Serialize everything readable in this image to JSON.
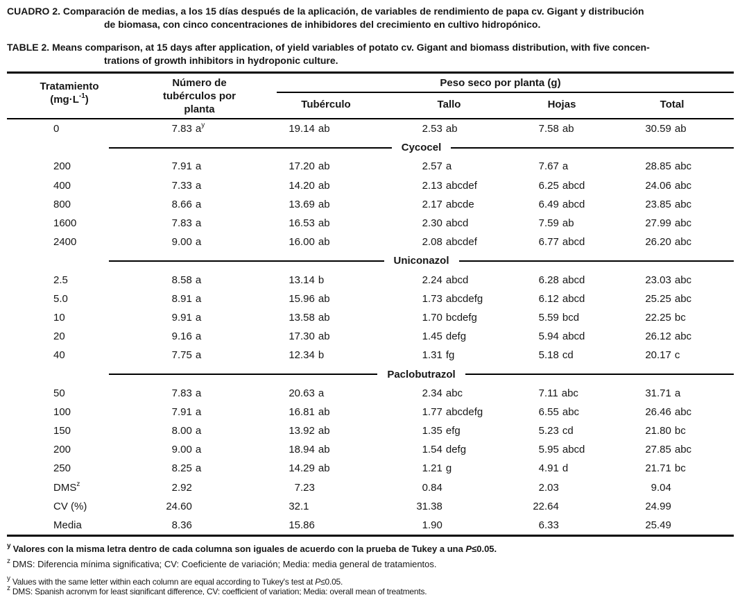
{
  "captions": {
    "spanish": {
      "line1": "CUADRO 2. Comparación de medias, a los 15 días después de la aplicación, de variables de rendimiento de papa cv. Gigant y distribución",
      "line2": "de biomasa, con cinco concentraciones de inhibidores del crecimiento en cultivo hidropónico."
    },
    "english": {
      "line1": "TABLE 2. Means comparison, at 15 days after application, of yield variables of potato cv. Gigant and biomass distribution, with five concen-",
      "line2": "trations of growth inhibitors in hydroponic culture."
    }
  },
  "table": {
    "headers": {
      "treatment_label": "Tratamiento",
      "treatment_unit": {
        "pre": "(mg·L",
        "sup": "-1",
        "post": ")"
      },
      "tubers_label_l1": "Número de",
      "tubers_label_l2": "tubérculos por",
      "tubers_label_l3": "planta",
      "dry_weight_label": "Peso seco por planta (g)",
      "sub_headers": [
        "Tubérculo",
        "Tallo",
        "Hojas",
        "Total"
      ]
    },
    "rows": [
      {
        "type": "data",
        "treatment": "0",
        "cells": [
          {
            "num": "7.83",
            "letters": "a",
            "sup": "y"
          },
          {
            "num": "19.14",
            "letters": "ab"
          },
          {
            "num": "2.53",
            "letters": "ab"
          },
          {
            "num": "7.58",
            "letters": "ab"
          },
          {
            "num": "30.59",
            "letters": "ab"
          }
        ]
      },
      {
        "type": "section",
        "label": "Cycocel"
      },
      {
        "type": "data",
        "treatment": "200",
        "cells": [
          {
            "num": "7.91",
            "letters": "a"
          },
          {
            "num": "17.20",
            "letters": "ab"
          },
          {
            "num": "2.57",
            "letters": "a"
          },
          {
            "num": "7.67",
            "letters": "a"
          },
          {
            "num": "28.85",
            "letters": "abc"
          }
        ]
      },
      {
        "type": "data",
        "treatment": "400",
        "cells": [
          {
            "num": "7.33",
            "letters": "a"
          },
          {
            "num": "14.20",
            "letters": "ab"
          },
          {
            "num": "2.13",
            "letters": "abcdef"
          },
          {
            "num": "6.25",
            "letters": "abcd"
          },
          {
            "num": "24.06",
            "letters": "abc"
          }
        ]
      },
      {
        "type": "data",
        "treatment": "800",
        "cells": [
          {
            "num": "8.66",
            "letters": "a"
          },
          {
            "num": "13.69",
            "letters": "ab"
          },
          {
            "num": "2.17",
            "letters": "abcde"
          },
          {
            "num": "6.49",
            "letters": "abcd"
          },
          {
            "num": "23.85",
            "letters": "abc"
          }
        ]
      },
      {
        "type": "data",
        "treatment": "1600",
        "cells": [
          {
            "num": "7.83",
            "letters": "a"
          },
          {
            "num": "16.53",
            "letters": "ab"
          },
          {
            "num": "2.30",
            "letters": "abcd"
          },
          {
            "num": "7.59",
            "letters": "ab"
          },
          {
            "num": "27.99",
            "letters": "abc"
          }
        ]
      },
      {
        "type": "data",
        "treatment": "2400",
        "cells": [
          {
            "num": "9.00",
            "letters": "a"
          },
          {
            "num": "16.00",
            "letters": "ab"
          },
          {
            "num": "2.08",
            "letters": "abcdef"
          },
          {
            "num": "6.77",
            "letters": "abcd"
          },
          {
            "num": "26.20",
            "letters": "abc"
          }
        ]
      },
      {
        "type": "section",
        "label": "Uniconazol"
      },
      {
        "type": "data",
        "treatment": "2.5",
        "cells": [
          {
            "num": "8.58",
            "letters": "a"
          },
          {
            "num": "13.14",
            "letters": "b"
          },
          {
            "num": "2.24",
            "letters": "abcd"
          },
          {
            "num": "6.28",
            "letters": "abcd"
          },
          {
            "num": "23.03",
            "letters": "abc"
          }
        ]
      },
      {
        "type": "data",
        "treatment": "5.0",
        "cells": [
          {
            "num": "8.91",
            "letters": "a"
          },
          {
            "num": "15.96",
            "letters": "ab"
          },
          {
            "num": "1.73",
            "letters": "abcdefg"
          },
          {
            "num": "6.12",
            "letters": "abcd"
          },
          {
            "num": "25.25",
            "letters": "abc"
          }
        ]
      },
      {
        "type": "data",
        "treatment": "10",
        "cells": [
          {
            "num": "9.91",
            "letters": "a"
          },
          {
            "num": "13.58",
            "letters": "ab"
          },
          {
            "num": "1.70",
            "letters": "bcdefg"
          },
          {
            "num": "5.59",
            "letters": "bcd"
          },
          {
            "num": "22.25",
            "letters": "bc"
          }
        ]
      },
      {
        "type": "data",
        "treatment": "20",
        "cells": [
          {
            "num": "9.16",
            "letters": "a"
          },
          {
            "num": "17.30",
            "letters": "ab"
          },
          {
            "num": "1.45",
            "letters": "defg"
          },
          {
            "num": "5.94",
            "letters": "abcd"
          },
          {
            "num": "26.12",
            "letters": "abc"
          }
        ]
      },
      {
        "type": "data",
        "treatment": "40",
        "cells": [
          {
            "num": "7.75",
            "letters": "a"
          },
          {
            "num": "12.34",
            "letters": "b"
          },
          {
            "num": "1.31",
            "letters": "fg"
          },
          {
            "num": "5.18",
            "letters": "cd"
          },
          {
            "num": "20.17",
            "letters": "c"
          }
        ]
      },
      {
        "type": "section",
        "label": "Paclobutrazol"
      },
      {
        "type": "data",
        "treatment": "50",
        "cells": [
          {
            "num": "7.83",
            "letters": "a"
          },
          {
            "num": "20.63",
            "letters": "a"
          },
          {
            "num": "2.34",
            "letters": "abc"
          },
          {
            "num": "7.11",
            "letters": "abc"
          },
          {
            "num": "31.71",
            "letters": "a"
          }
        ]
      },
      {
        "type": "data",
        "treatment": "100",
        "cells": [
          {
            "num": "7.91",
            "letters": "a"
          },
          {
            "num": "16.81",
            "letters": "ab"
          },
          {
            "num": "1.77",
            "letters": "abcdefg"
          },
          {
            "num": "6.55",
            "letters": "abc"
          },
          {
            "num": "26.46",
            "letters": "abc"
          }
        ]
      },
      {
        "type": "data",
        "treatment": "150",
        "cells": [
          {
            "num": "8.00",
            "letters": "a"
          },
          {
            "num": "13.92",
            "letters": "ab"
          },
          {
            "num": "1.35",
            "letters": "efg"
          },
          {
            "num": "5.23",
            "letters": "cd"
          },
          {
            "num": "21.80",
            "letters": "bc"
          }
        ]
      },
      {
        "type": "data",
        "treatment": "200",
        "cells": [
          {
            "num": "9.00",
            "letters": "a"
          },
          {
            "num": "18.94",
            "letters": "ab"
          },
          {
            "num": "1.54",
            "letters": "defg"
          },
          {
            "num": "5.95",
            "letters": "abcd"
          },
          {
            "num": "27.85",
            "letters": "abc"
          }
        ]
      },
      {
        "type": "data",
        "treatment": "250",
        "cells": [
          {
            "num": "8.25",
            "letters": "a"
          },
          {
            "num": "14.29",
            "letters": "ab"
          },
          {
            "num": "1.21",
            "letters": "g"
          },
          {
            "num": "4.91",
            "letters": "d"
          },
          {
            "num": "21.71",
            "letters": "bc"
          }
        ]
      },
      {
        "type": "data",
        "treatment": "DMS",
        "treatment_sup": "z",
        "cells": [
          {
            "num": "2.92"
          },
          {
            "num": "7.23"
          },
          {
            "num": "0.84"
          },
          {
            "num": "2.03"
          },
          {
            "num": "9.04"
          }
        ]
      },
      {
        "type": "data",
        "treatment": "CV (%)",
        "cells": [
          {
            "num": "24.60"
          },
          {
            "num": "32.1"
          },
          {
            "num": "31.38"
          },
          {
            "num": "22.64"
          },
          {
            "num": "24.99"
          }
        ]
      },
      {
        "type": "data",
        "treatment": "Media",
        "cells": [
          {
            "num": "8.36"
          },
          {
            "num": "15.86"
          },
          {
            "num": "1.90"
          },
          {
            "num": "6.33"
          },
          {
            "num": "25.49"
          }
        ]
      }
    ]
  },
  "footnotes": {
    "es_y": {
      "sup": "y",
      "before_p": "Valores con la misma letra dentro de cada columna son iguales de acuerdo con la prueba de Tukey a una ",
      "p": "P",
      "after_p": "≤0.05."
    },
    "es_z": {
      "sup": "z",
      "text": "DMS: Diferencia mínima significativa; CV: Coeficiente de variación; Media: media general de tratamientos."
    },
    "en_y": {
      "sup": "y",
      "before_p": "Values with the same letter within each column are equal according to Tukey's test at ",
      "p": "P",
      "after_p": "≤0.05."
    },
    "en_z": {
      "sup": "z",
      "text": "DMS: Spanish acronym for least significant difference, CV: coefficient of variation; Media: overall mean of treatments."
    }
  },
  "colors": {
    "ink": "#161616",
    "paper": "#ffffff"
  }
}
